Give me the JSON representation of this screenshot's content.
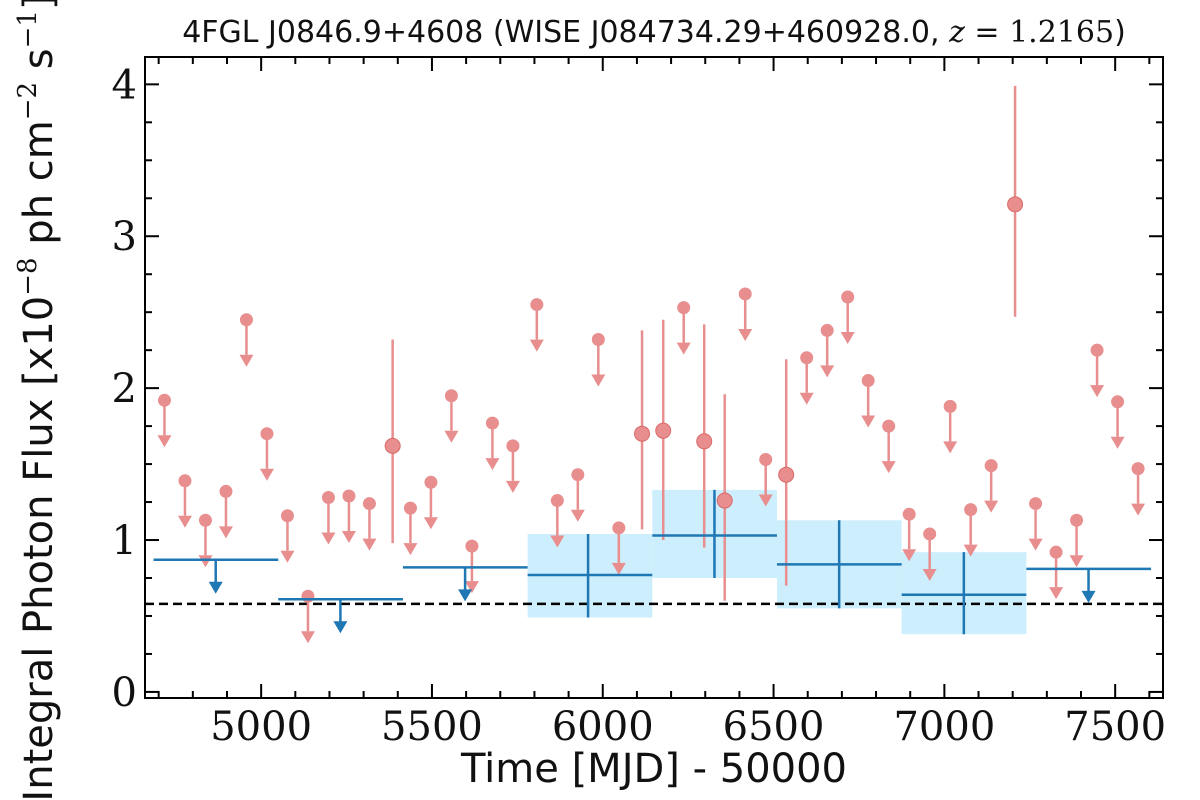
{
  "chart_data": {
    "type": "scatter",
    "title_prefix": "4FGL J0846.9+4608 (WISE J084734.29+460928.0, ",
    "title_z": "z",
    "title_mid": " = ",
    "title_zval": "1.2165",
    "title_suffix": ")",
    "xlabel": "Time [MJD] - 50000",
    "ylabel_main": "Integral Photon Flux [x10",
    "ylabel_exp1": "−8",
    "ylabel_mid": " ph cm",
    "ylabel_exp2": "−2",
    "ylabel_s": " s",
    "ylabel_exp3": "−1",
    "ylabel_end": "]",
    "xlim": [
      4660,
      7640
    ],
    "ylim": [
      -0.04,
      4.18
    ],
    "xticks": [
      5000,
      5500,
      6000,
      6500,
      7000,
      7500
    ],
    "yticks": [
      0,
      1,
      2,
      3,
      4
    ],
    "reference_line": 0.58,
    "colors": {
      "monthly": "#e88e8e",
      "yearly": "#1f77b4",
      "band": "#cdeefc",
      "reference": "#000000"
    },
    "series": [
      {
        "cadence": "monthly",
        "detections": [
          {
            "x": 5385,
            "y": 1.62,
            "lo": 0.98,
            "hi": 2.32
          },
          {
            "x": 6115,
            "y": 1.7,
            "lo": 1.07,
            "hi": 2.38
          },
          {
            "x": 6177,
            "y": 1.72,
            "lo": 1.0,
            "hi": 2.45
          },
          {
            "x": 6297,
            "y": 1.65,
            "lo": 0.95,
            "hi": 2.42
          },
          {
            "x": 6357,
            "y": 1.26,
            "lo": 0.6,
            "hi": 1.96
          },
          {
            "x": 6537,
            "y": 1.43,
            "lo": 0.7,
            "hi": 2.19
          },
          {
            "x": 7207,
            "y": 3.21,
            "lo": 2.47,
            "hi": 3.99
          }
        ],
        "upper_limits": [
          {
            "x": 4717,
            "y": 1.92
          },
          {
            "x": 4777,
            "y": 1.39
          },
          {
            "x": 4837,
            "y": 1.13
          },
          {
            "x": 4897,
            "y": 1.32
          },
          {
            "x": 4957,
            "y": 2.45
          },
          {
            "x": 5017,
            "y": 1.7
          },
          {
            "x": 5077,
            "y": 1.16
          },
          {
            "x": 5137,
            "y": 0.63
          },
          {
            "x": 5197,
            "y": 1.28
          },
          {
            "x": 5257,
            "y": 1.29
          },
          {
            "x": 5317,
            "y": 1.24
          },
          {
            "x": 5437,
            "y": 1.21
          },
          {
            "x": 5497,
            "y": 1.38
          },
          {
            "x": 5557,
            "y": 1.95
          },
          {
            "x": 5617,
            "y": 0.96
          },
          {
            "x": 5677,
            "y": 1.77
          },
          {
            "x": 5737,
            "y": 1.62
          },
          {
            "x": 5807,
            "y": 2.55
          },
          {
            "x": 5867,
            "y": 1.26
          },
          {
            "x": 5927,
            "y": 1.43
          },
          {
            "x": 5987,
            "y": 2.32
          },
          {
            "x": 6047,
            "y": 1.08
          },
          {
            "x": 6237,
            "y": 2.53
          },
          {
            "x": 6417,
            "y": 2.62
          },
          {
            "x": 6477,
            "y": 1.53
          },
          {
            "x": 6597,
            "y": 2.2
          },
          {
            "x": 6657,
            "y": 2.38
          },
          {
            "x": 6717,
            "y": 2.6
          },
          {
            "x": 6777,
            "y": 2.05
          },
          {
            "x": 6837,
            "y": 1.75
          },
          {
            "x": 6897,
            "y": 1.17
          },
          {
            "x": 6957,
            "y": 1.04
          },
          {
            "x": 7017,
            "y": 1.88
          },
          {
            "x": 7077,
            "y": 1.2
          },
          {
            "x": 7137,
            "y": 1.49
          },
          {
            "x": 7267,
            "y": 1.24
          },
          {
            "x": 7327,
            "y": 0.92
          },
          {
            "x": 7387,
            "y": 1.13
          },
          {
            "x": 7447,
            "y": 2.25
          },
          {
            "x": 7507,
            "y": 1.91
          },
          {
            "x": 7567,
            "y": 1.47
          }
        ]
      },
      {
        "cadence": "yearly",
        "detections": [
          {
            "x": 5957,
            "x0": 5780,
            "x1": 6145,
            "y": 0.77,
            "lo": 0.49,
            "hi": 1.04
          },
          {
            "x": 6327,
            "x0": 6145,
            "x1": 6510,
            "y": 1.03,
            "lo": 0.75,
            "hi": 1.33
          },
          {
            "x": 6692,
            "x0": 6510,
            "x1": 6875,
            "y": 0.84,
            "lo": 0.55,
            "hi": 1.13
          },
          {
            "x": 7057,
            "x0": 6875,
            "x1": 7240,
            "y": 0.64,
            "lo": 0.38,
            "hi": 0.92
          }
        ],
        "upper_limits": [
          {
            "x": 4867,
            "x0": 4685,
            "x1": 5050,
            "y": 0.87
          },
          {
            "x": 5232,
            "x0": 5050,
            "x1": 5415,
            "y": 0.61
          },
          {
            "x": 5597,
            "x0": 5415,
            "x1": 5780,
            "y": 0.82
          },
          {
            "x": 7422,
            "x0": 7240,
            "x1": 7605,
            "y": 0.81
          }
        ]
      }
    ]
  }
}
